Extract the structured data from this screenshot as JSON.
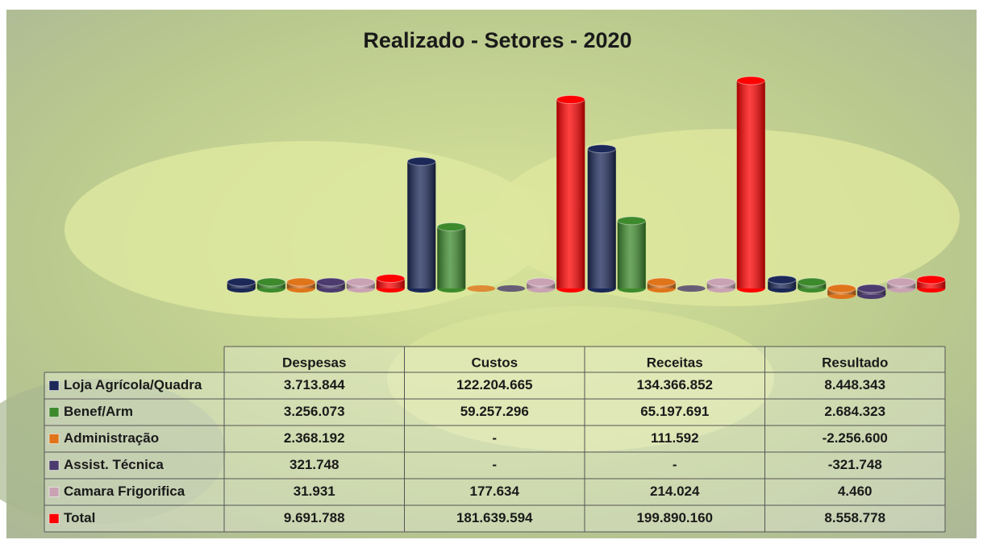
{
  "chart_data": {
    "type": "bar",
    "title": "Realizado - Setores - 2020",
    "categories": [
      "Despesas",
      "Custos",
      "Receitas",
      "Resultado"
    ],
    "series": [
      {
        "name": "Loja Agrícola/Quadra",
        "color": "#1b2858",
        "values": [
          3713844,
          122204665,
          134366852,
          8448343
        ],
        "value_labels": [
          "3.713.844",
          "122.204.665",
          "134.366.852",
          "8.448.343"
        ]
      },
      {
        "name": "Benef/Arm",
        "color": "#3d8a2c",
        "values": [
          3256073,
          59257296,
          65197691,
          2684323
        ],
        "value_labels": [
          "3.256.073",
          "59.257.296",
          "65.197.691",
          "2.684.323"
        ]
      },
      {
        "name": "Administração",
        "color": "#e0741a",
        "values": [
          2368192,
          null,
          111592,
          -2256600
        ],
        "value_labels": [
          "2.368.192",
          "-",
          "111.592",
          "-2.256.600"
        ]
      },
      {
        "name": "Assist. Técnica",
        "color": "#4b3b6e",
        "values": [
          321748,
          null,
          null,
          -321748
        ],
        "value_labels": [
          "321.748",
          "-",
          "-",
          "-321.748"
        ]
      },
      {
        "name": "Camara Frigorifica",
        "color": "#c9a2b3",
        "values": [
          31931,
          177634,
          214024,
          4460
        ],
        "value_labels": [
          "31.931",
          "177.634",
          "214.024",
          "4.460"
        ]
      },
      {
        "name": "Total",
        "color": "#ff0000",
        "values": [
          9691788,
          181639594,
          199890160,
          8558778
        ],
        "value_labels": [
          "9.691.788",
          "181.639.594",
          "199.890.160",
          "8.558.778"
        ]
      }
    ]
  }
}
